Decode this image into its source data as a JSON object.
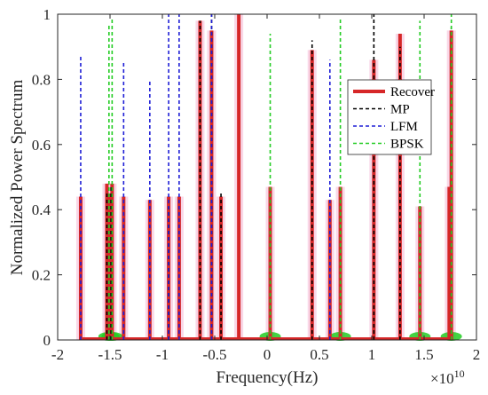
{
  "chart_data": {
    "type": "line",
    "title": "",
    "xlabel": "Frequency(Hz)",
    "ylabel": "Normalized Power Spectrum",
    "x_scale_note": "×10^10",
    "x_scale_base": "×10",
    "x_scale_exp": "10",
    "xlim": [
      -2,
      2
    ],
    "ylim": [
      0,
      1
    ],
    "grid": false,
    "legend_position": "right",
    "x_ticks": [
      -2,
      -1.5,
      -1,
      -0.5,
      0,
      0.5,
      1,
      1.5,
      2
    ],
    "x_tick_labels": [
      "-2",
      "-1.5",
      "-1",
      "-0.5",
      "0",
      "0.5",
      "1",
      "1.5",
      "2"
    ],
    "y_ticks": [
      0,
      0.2,
      0.4,
      0.6,
      0.8,
      1
    ],
    "y_tick_labels": [
      "0",
      "0.2",
      "0.4",
      "0.6",
      "0.8",
      "1"
    ],
    "colors": {
      "Recover": "#d62728",
      "MP": "#000000",
      "LFM": "#1f1fd6",
      "BPSK": "#22cc22",
      "glow": "#f7c6dd"
    },
    "series": [
      {
        "name": "Recover",
        "style": "solid-thick",
        "x": [
          -1.78,
          -1.53,
          -1.5,
          -1.48,
          -1.37,
          -1.12,
          -0.94,
          -0.84,
          -0.64,
          -0.53,
          -0.44,
          -0.27,
          0.03,
          0.43,
          0.6,
          0.7,
          1.02,
          1.27,
          1.46,
          1.74,
          1.76
        ],
        "y": [
          0.44,
          0.48,
          0.45,
          0.48,
          0.44,
          0.43,
          0.44,
          0.44,
          0.98,
          0.95,
          0.44,
          1.0,
          0.47,
          0.89,
          0.43,
          0.47,
          0.86,
          0.94,
          0.41,
          0.47,
          0.95
        ]
      },
      {
        "name": "MP",
        "style": "dashed",
        "x": [
          -1.53,
          -1.49,
          -0.94,
          -0.64,
          -0.53,
          -0.44,
          0.43,
          1.02,
          1.27,
          1.76
        ],
        "y": [
          0.45,
          0.47,
          0.41,
          0.98,
          1.0,
          0.45,
          0.92,
          1.0,
          0.9,
          0.96
        ]
      },
      {
        "name": "LFM",
        "style": "dashed",
        "x": [
          -1.78,
          -1.37,
          -1.12,
          -0.94,
          -0.84,
          -0.53,
          0.6
        ],
        "y": [
          0.87,
          0.85,
          0.8,
          1.0,
          1.0,
          1.0,
          0.86
        ]
      },
      {
        "name": "BPSK",
        "style": "dashed",
        "x": [
          -1.51,
          -1.48,
          0.03,
          0.7,
          1.46,
          1.76
        ],
        "y": [
          0.97,
          0.99,
          0.94,
          0.99,
          0.98,
          1.0
        ]
      }
    ]
  }
}
